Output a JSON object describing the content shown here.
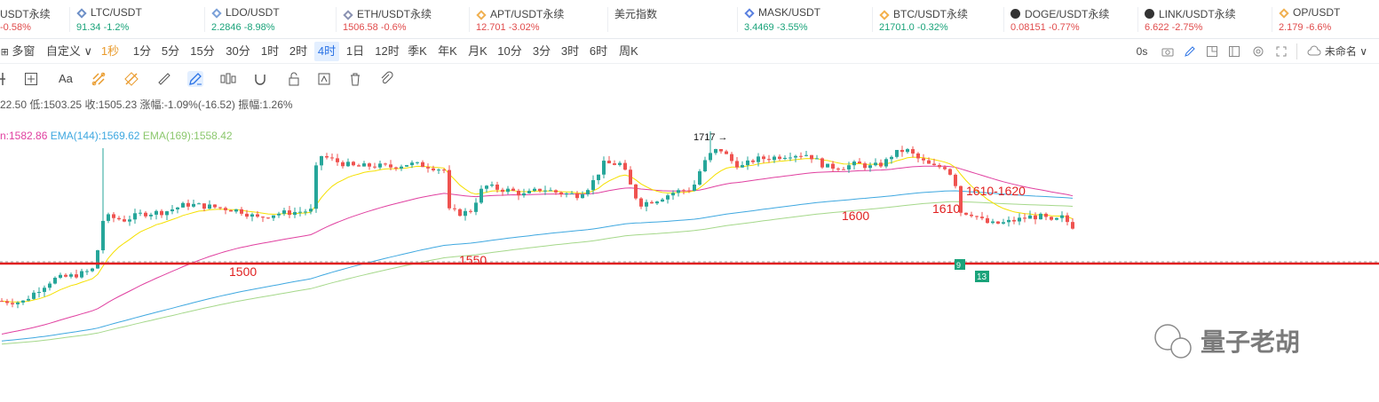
{
  "tickers": [
    {
      "name": "USDT永续",
      "price": "",
      "change": "-0.58%",
      "dir": "dn",
      "icon": "none"
    },
    {
      "name": "LTC/USDT",
      "price": "91.34",
      "change": "-1.2%",
      "dir": "up",
      "icon": "ltc-icon"
    },
    {
      "name": "LDO/USDT",
      "price": "2.2846",
      "change": "-8.98%",
      "dir": "up",
      "icon": "ldo-icon"
    },
    {
      "name": "ETH/USDT永续",
      "price": "1506.58",
      "change": "-0.6%",
      "dir": "dn",
      "icon": "eth-icon"
    },
    {
      "name": "APT/USDT永续",
      "price": "12.701",
      "change": "-3.02%",
      "dir": "dn",
      "icon": "apt-icon"
    },
    {
      "name": "美元指数",
      "price": "",
      "change": "",
      "dir": "up",
      "icon": "none"
    },
    {
      "name": "MASK/USDT",
      "price": "3.4469",
      "change": "-3.55%",
      "dir": "up",
      "icon": "mask-icon"
    },
    {
      "name": "BTC/USDT永续",
      "price": "21701.0",
      "change": "-0.32%",
      "dir": "up",
      "icon": "btc-icon"
    },
    {
      "name": "DOGE/USDT永续",
      "price": "0.08151",
      "change": "-0.77%",
      "dir": "dn",
      "icon": "doge-icon"
    },
    {
      "name": "LINK/USDT永续",
      "price": "6.622",
      "change": "-2.75%",
      "dir": "dn",
      "icon": "link-icon"
    },
    {
      "name": "OP/USDT",
      "price": "2.179",
      "change": "-6.6%",
      "dir": "dn",
      "icon": "op-icon"
    }
  ],
  "toolbar": {
    "layout": "多窗",
    "custom": "自定义",
    "intervals": [
      "1秒",
      "1分",
      "5分",
      "15分",
      "30分",
      "1时",
      "2时",
      "4时",
      "1日",
      "12时",
      "季K",
      "年K",
      "月K",
      "10分",
      "3分",
      "3时",
      "6时",
      "周K"
    ],
    "active_interval": "4时",
    "timer": "0s",
    "workspace": "未命名"
  },
  "ohlc": {
    "open_partial": "22.50",
    "low": "低:1503.25",
    "close": "收:1505.23",
    "change": "涨幅:-1.09%(-16.52)",
    "amplitude": "振幅:1.26%"
  },
  "ema": {
    "ema_partial": "n:1582.86",
    "ema144": "EMA(144):1569.62",
    "ema169": "EMA(169):1558.42"
  },
  "annotations": {
    "peak": "1717",
    "lv1500": "1500",
    "lv1550": "1550",
    "lv1600": "1600",
    "lv1610": "1610",
    "lv1610_1620": "1610-1620",
    "tag13": "13",
    "tag9": "9"
  },
  "watermark": "量子老胡",
  "colors": {
    "up": "#26a69a",
    "down": "#ef5350",
    "ema_short": "#f5e000",
    "ema_mid": "#e040a0",
    "ema144": "#3fa8e0",
    "ema169": "#a5d88a",
    "support": "#e02020"
  },
  "chart_data": {
    "type": "candlestick",
    "series_name": "ETH/USDT永续 4时",
    "ylim": [
      1370,
      1740
    ],
    "support_level": 1505,
    "candles": []
  }
}
